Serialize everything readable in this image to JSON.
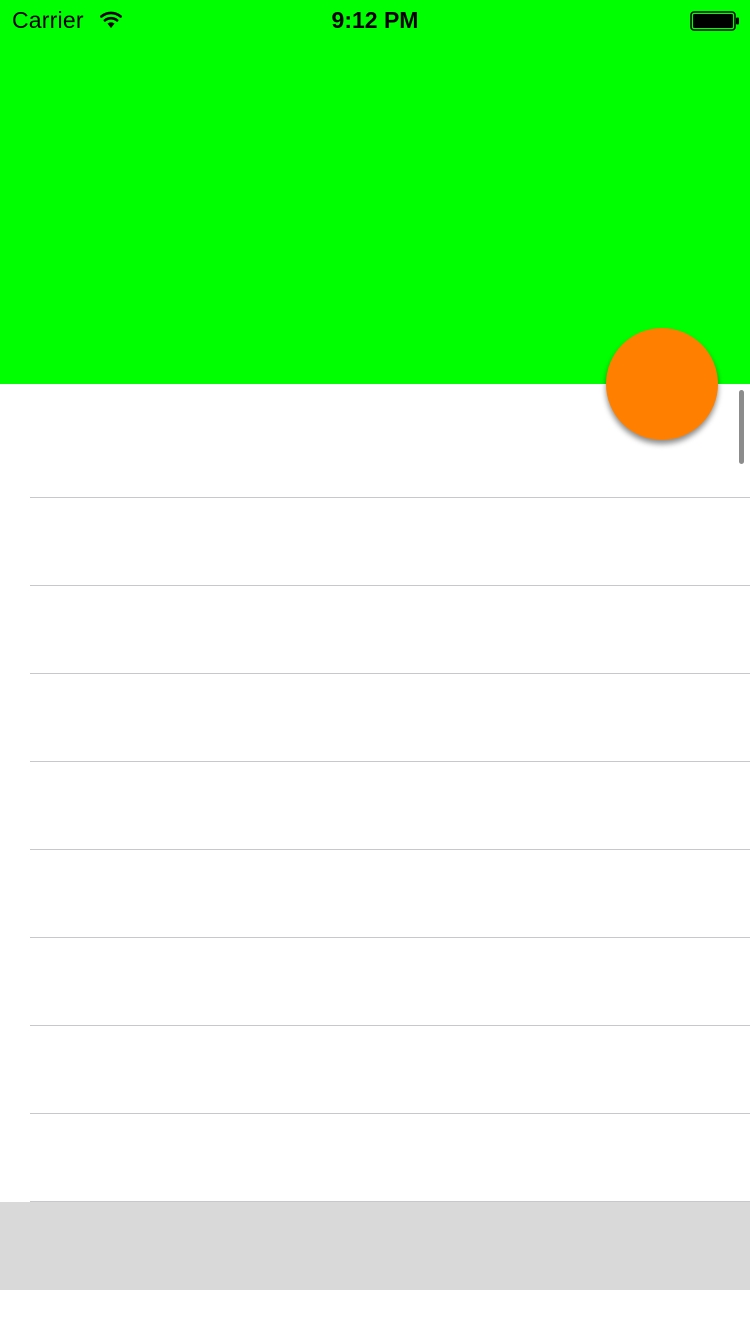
{
  "status_bar": {
    "carrier": "Carrier",
    "time": "9:12 PM",
    "wifi_icon": "wifi-icon",
    "battery_icon": "battery-icon"
  },
  "colors": {
    "header_bg": "#00ff00",
    "fab_bg": "#ff8000",
    "footer_bg": "#d9d9d9",
    "separator": "#c8c7cc"
  },
  "table": {
    "rows": [
      "",
      "",
      "",
      "",
      "",
      "",
      "",
      "",
      ""
    ]
  }
}
